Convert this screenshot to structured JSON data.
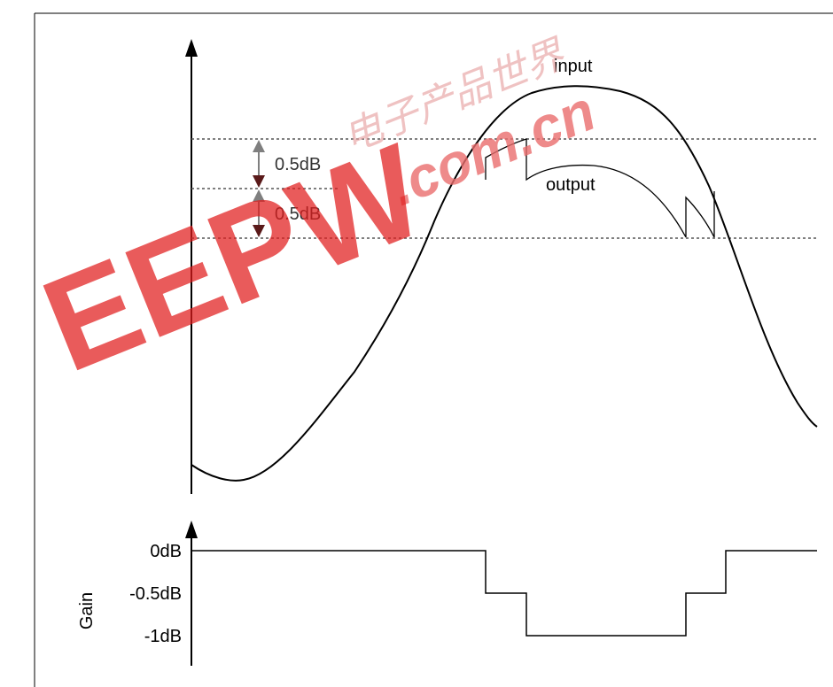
{
  "upper_plot": {
    "input_label": "input",
    "output_label": "output",
    "step_labels": [
      "0.5dB",
      "0.5dB"
    ]
  },
  "lower_plot": {
    "axis_label": "Gain",
    "tick_labels": [
      "0dB",
      "-0.5dB",
      "-1dB"
    ]
  },
  "watermark": {
    "brand_text": "EEPW",
    "domain_text": ".com.cn",
    "chinese_text": "电子产品世界",
    "color": "#e11d1d"
  },
  "colors": {
    "line": "#000000",
    "dotted": "#555555",
    "arrow_up": "#7f7f7f",
    "arrow_down": "#5a1a1a"
  }
}
